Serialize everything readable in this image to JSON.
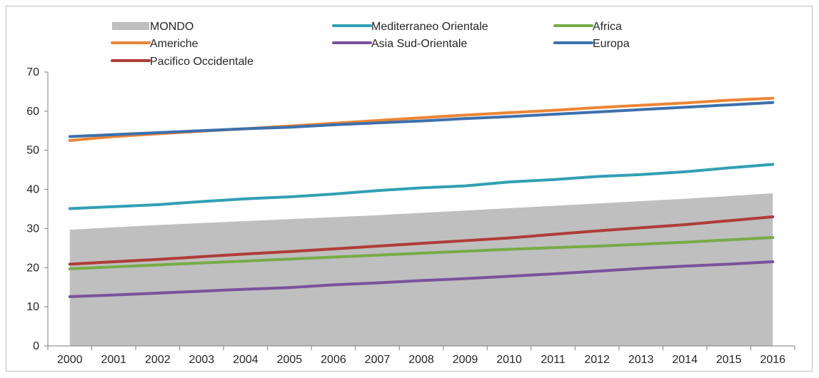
{
  "chart_data": {
    "type": "line",
    "categories": [
      "2000",
      "2001",
      "2002",
      "2003",
      "2004",
      "2005",
      "2006",
      "2007",
      "2008",
      "2009",
      "2010",
      "2011",
      "2012",
      "2013",
      "2014",
      "2015",
      "2016"
    ],
    "ylim": [
      0,
      70
    ],
    "yticks": [
      0,
      10,
      20,
      30,
      40,
      50,
      60,
      70
    ],
    "grid": false,
    "legend_position": "top",
    "series": [
      {
        "name": "MONDO",
        "style": "area",
        "color": "#bfbfbf",
        "values": [
          29.7,
          30.3,
          30.9,
          31.4,
          31.9,
          32.4,
          32.9,
          33.4,
          34.0,
          34.6,
          35.2,
          35.8,
          36.4,
          37.0,
          37.6,
          38.3,
          39.0
        ]
      },
      {
        "name": "Mediterraneo Orientale",
        "style": "line",
        "color": "#31a0b4",
        "values": [
          35.1,
          35.6,
          36.1,
          36.9,
          37.6,
          38.1,
          38.8,
          39.7,
          40.4,
          40.9,
          41.9,
          42.5,
          43.3,
          43.8,
          44.5,
          45.5,
          46.4
        ]
      },
      {
        "name": "Africa",
        "style": "line",
        "color": "#77ac47",
        "values": [
          19.7,
          20.2,
          20.7,
          21.2,
          21.7,
          22.2,
          22.7,
          23.2,
          23.7,
          24.2,
          24.7,
          25.1,
          25.5,
          26.0,
          26.5,
          27.1,
          27.7
        ]
      },
      {
        "name": "Americhe",
        "style": "line",
        "color": "#ec8536",
        "values": [
          52.5,
          53.5,
          54.2,
          54.9,
          55.5,
          56.2,
          56.9,
          57.6,
          58.3,
          59.0,
          59.6,
          60.2,
          60.9,
          61.5,
          62.1,
          62.8,
          63.3
        ]
      },
      {
        "name": "Asia Sud-Orientale",
        "style": "line",
        "color": "#7b529c",
        "values": [
          12.6,
          13.0,
          13.5,
          14.0,
          14.5,
          14.9,
          15.6,
          16.1,
          16.7,
          17.2,
          17.8,
          18.4,
          19.1,
          19.8,
          20.4,
          20.9,
          21.5
        ]
      },
      {
        "name": "Europa",
        "style": "line",
        "color": "#3d70ad",
        "values": [
          53.5,
          54.0,
          54.5,
          55.0,
          55.5,
          55.9,
          56.5,
          57.0,
          57.5,
          58.1,
          58.6,
          59.2,
          59.8,
          60.4,
          61.0,
          61.6,
          62.2
        ]
      },
      {
        "name": "Pacifico Occidentale",
        "style": "line",
        "color": "#b03c38",
        "values": [
          20.9,
          21.5,
          22.1,
          22.8,
          23.5,
          24.1,
          24.8,
          25.5,
          26.2,
          26.9,
          27.6,
          28.5,
          29.4,
          30.2,
          31.0,
          32.0,
          33.0
        ]
      }
    ]
  }
}
